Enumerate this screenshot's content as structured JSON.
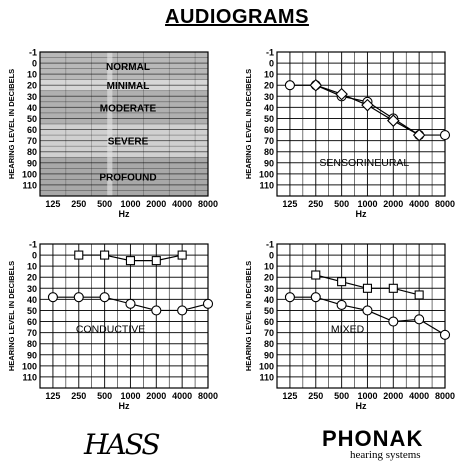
{
  "page": {
    "title": "AUDIOGRAMS"
  },
  "logos": {
    "left": "HASS",
    "right": "PHONAK",
    "right_sub": "hearing systems"
  },
  "chart_data": [
    {
      "type": "line",
      "panel": "top-left",
      "ylabel": "HEARING LEVEL IN DECIBELS",
      "xlabel": "Hz",
      "x_ticks": [
        "125",
        "250",
        "500",
        "1000",
        "2000",
        "4000",
        "8000"
      ],
      "y_ticks": [
        "-1",
        "0",
        "10",
        "20",
        "30",
        "40",
        "50",
        "60",
        "70",
        "80",
        "90",
        "100",
        "110"
      ],
      "ylim": [
        -10,
        120
      ],
      "inverted_y": true,
      "grid": true,
      "bands": [
        {
          "label": "NORMAL",
          "from": -10,
          "to": 15,
          "color": "#b8b8b8"
        },
        {
          "label": "MINIMAL",
          "from": 15,
          "to": 25,
          "color": "#d6d6d6"
        },
        {
          "label": "MODERATE",
          "from": 25,
          "to": 55,
          "color": "#b0b0b0"
        },
        {
          "label": "SEVERE",
          "from": 55,
          "to": 85,
          "color": "#d0d0d0"
        },
        {
          "label": "PROFOUND",
          "from": 85,
          "to": 120,
          "color": "#a8a8a8"
        }
      ],
      "series": []
    },
    {
      "type": "line",
      "panel": "top-right",
      "annotation": "SENSORINEURAL",
      "ylabel": "HEARING LEVEL IN DECIBELS",
      "xlabel": "Hz",
      "x_ticks": [
        "125",
        "250",
        "500",
        "1000",
        "2000",
        "4000",
        "8000"
      ],
      "y_ticks": [
        "-1",
        "0",
        "10",
        "20",
        "30",
        "40",
        "50",
        "60",
        "70",
        "80",
        "90",
        "100",
        "110"
      ],
      "ylim": [
        -10,
        120
      ],
      "inverted_y": true,
      "grid": true,
      "series": [
        {
          "marker": "circle",
          "x": [
            125,
            250,
            500,
            1000,
            2000,
            4000,
            8000
          ],
          "values": [
            20,
            20,
            30,
            35,
            50,
            65,
            65
          ]
        },
        {
          "marker": "triangle",
          "x": [
            250,
            500,
            1000,
            2000,
            4000
          ],
          "values": [
            20,
            28,
            38,
            52,
            65
          ]
        }
      ]
    },
    {
      "type": "line",
      "panel": "bottom-left",
      "annotation": "CONDUCTIVE",
      "ylabel": "HEARING LEVEL IN DECIBELS",
      "xlabel": "Hz",
      "x_ticks": [
        "125",
        "250",
        "500",
        "1000",
        "2000",
        "4000",
        "8000"
      ],
      "y_ticks": [
        "-1",
        "0",
        "10",
        "20",
        "30",
        "40",
        "50",
        "60",
        "70",
        "80",
        "90",
        "100",
        "110"
      ],
      "ylim": [
        -10,
        120
      ],
      "inverted_y": true,
      "grid": true,
      "series": [
        {
          "marker": "square",
          "x": [
            250,
            500,
            1000,
            2000,
            4000
          ],
          "values": [
            0,
            0,
            5,
            5,
            0
          ]
        },
        {
          "marker": "circle",
          "x": [
            125,
            250,
            500,
            1000,
            2000,
            4000,
            8000
          ],
          "values": [
            38,
            38,
            38,
            44,
            50,
            50,
            44
          ]
        }
      ]
    },
    {
      "type": "line",
      "panel": "bottom-right",
      "annotation": "MIXED",
      "ylabel": "HEARING LEVEL IN DECIBELS",
      "xlabel": "Hz",
      "x_ticks": [
        "125",
        "250",
        "500",
        "1000",
        "2000",
        "4000",
        "8000"
      ],
      "y_ticks": [
        "-1",
        "0",
        "10",
        "20",
        "30",
        "40",
        "50",
        "60",
        "70",
        "80",
        "90",
        "100",
        "110"
      ],
      "ylim": [
        -10,
        120
      ],
      "inverted_y": true,
      "grid": true,
      "series": [
        {
          "marker": "square",
          "x": [
            250,
            500,
            1000,
            2000,
            4000
          ],
          "values": [
            18,
            24,
            30,
            30,
            36
          ]
        },
        {
          "marker": "circle",
          "x": [
            125,
            250,
            500,
            1000,
            2000,
            4000,
            8000
          ],
          "values": [
            38,
            38,
            45,
            50,
            60,
            58,
            72
          ]
        }
      ]
    }
  ]
}
